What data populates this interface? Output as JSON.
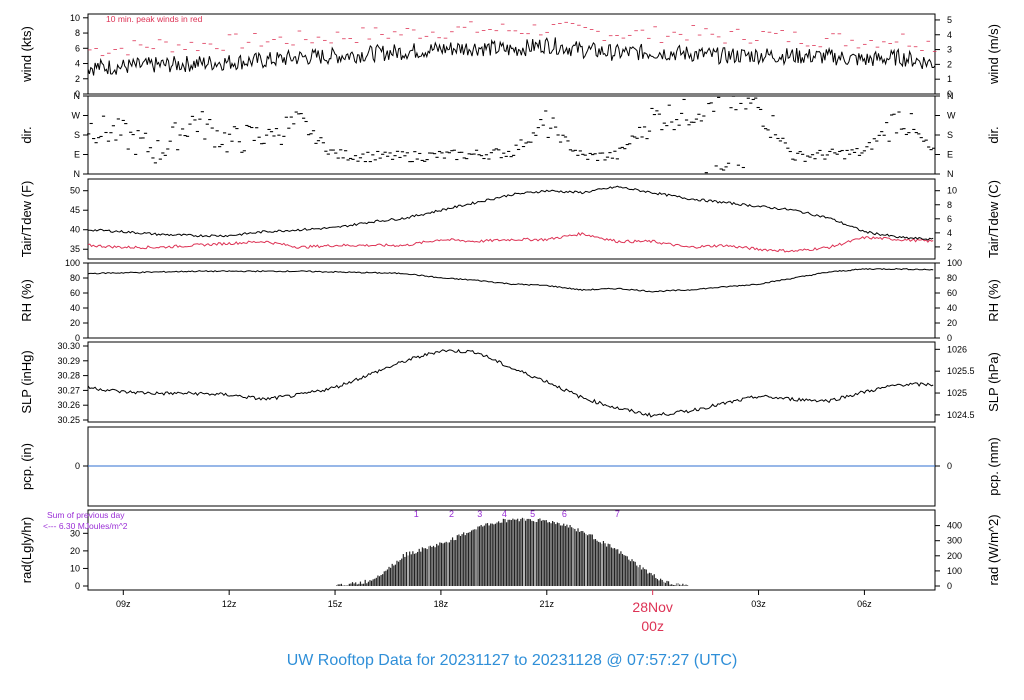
{
  "title": "UW Rooftop Data for 20231127  to  20231128 @ 07:57:27  (UTC)",
  "colors": {
    "title": "#2f8fd8",
    "red": "#dd3355",
    "purple": "#9a2ed6",
    "blue": "#2f6fd0",
    "black": "#000000"
  },
  "x_axis": {
    "ticks": [
      {
        "label": "09z",
        "hour": 1
      },
      {
        "label": "12z",
        "hour": 4
      },
      {
        "label": "15z",
        "hour": 7
      },
      {
        "label": "18z",
        "hour": 10
      },
      {
        "label": "21z",
        "hour": 13
      },
      {
        "label": "03z",
        "hour": 19
      },
      {
        "label": "06z",
        "hour": 22
      }
    ],
    "date_label": "28Nov",
    "midnight_label": "00z",
    "midnight_hour": 16,
    "range_hours_from_08z": [
      0,
      24
    ]
  },
  "chart_data": [
    {
      "type": "line",
      "name": "wind",
      "ylabel_left": "wind (kts)",
      "ylabel_right": "wind (m/s)",
      "ylim": [
        0,
        10.5
      ],
      "left_ticks": [
        "0",
        "2",
        "4",
        "6",
        "8",
        "10"
      ],
      "right_ticks": [
        "0",
        "1",
        "2",
        "3",
        "4",
        "5"
      ],
      "annotation": "10 min. peak winds in red",
      "x": [
        0,
        1,
        2,
        3,
        4,
        5,
        6,
        7,
        8,
        9,
        10,
        11,
        12,
        13,
        14,
        15,
        16,
        17,
        18,
        19,
        20,
        21,
        22,
        23,
        24
      ],
      "series": [
        {
          "name": "wind",
          "values": [
            3.5,
            3.6,
            3.8,
            4.0,
            4.2,
            4.4,
            4.8,
            5.0,
            5.3,
            5.6,
            5.9,
            6.1,
            5.8,
            6.5,
            5.8,
            5.4,
            5.5,
            5.3,
            5.0,
            5.1,
            5.0,
            4.9,
            4.5,
            4.8,
            4.0
          ]
        },
        {
          "name": "peak",
          "values": [
            5.8,
            6.0,
            6.5,
            6.4,
            6.8,
            7.0,
            7.2,
            7.5,
            7.8,
            8.0,
            8.3,
            8.5,
            8.4,
            8.6,
            8.2,
            8.0,
            7.8,
            8.0,
            7.5,
            7.8,
            7.4,
            7.2,
            7.0,
            7.3,
            6.5
          ]
        }
      ]
    },
    {
      "type": "scatter",
      "name": "direction",
      "ylabel": "dir.",
      "ticks": [
        "N",
        "E",
        "S",
        "W",
        "N"
      ],
      "x": [
        0,
        1,
        2,
        3,
        4,
        5,
        6,
        7,
        8,
        9,
        10,
        11,
        12,
        13,
        14,
        15,
        16,
        17,
        18,
        19,
        20,
        21,
        22,
        23,
        24
      ],
      "values_deg": [
        220,
        180,
        100,
        250,
        150,
        180,
        230,
        90,
        80,
        80,
        85,
        90,
        100,
        230,
        80,
        85,
        260,
        280,
        350,
        310,
        80,
        90,
        100,
        270,
        90
      ]
    },
    {
      "type": "line",
      "name": "temperature",
      "ylabel_left": "Tair/Tdew (F)",
      "ylabel_right": "Tair/Tdew (C)",
      "ylim": [
        32.5,
        53
      ],
      "left_ticks": [
        "35",
        "40",
        "45",
        "50"
      ],
      "right_ticks": [
        "2",
        "4",
        "6",
        "8",
        "10"
      ],
      "x": [
        0,
        1,
        2,
        3,
        4,
        5,
        6,
        7,
        8,
        9,
        10,
        11,
        12,
        13,
        14,
        15,
        16,
        17,
        18,
        19,
        20,
        21,
        22,
        23,
        24
      ],
      "series": [
        {
          "name": "Tair",
          "values": [
            40,
            39.5,
            38.8,
            38.5,
            38.5,
            39.5,
            40,
            40.5,
            42,
            43,
            45,
            47,
            49,
            50,
            49.5,
            51,
            49.5,
            48,
            47,
            46,
            45,
            43,
            39.5,
            38,
            37.5
          ]
        },
        {
          "name": "Tdew",
          "values": [
            36,
            35.5,
            35.5,
            36,
            36.5,
            37,
            35.5,
            36,
            36,
            36,
            37.5,
            37,
            37.5,
            37.5,
            39,
            37,
            37,
            35.5,
            36,
            35,
            34.5,
            35.5,
            38,
            37.5,
            37
          ]
        }
      ]
    },
    {
      "type": "line",
      "name": "rh",
      "ylabel_left": "RH (%)",
      "ylabel_right": "RH (%)",
      "ylim": [
        0,
        100
      ],
      "left_ticks": [
        "0",
        "20",
        "40",
        "60",
        "80",
        "100"
      ],
      "right_ticks": [
        "0",
        "20",
        "40",
        "60",
        "80",
        "100"
      ],
      "x": [
        0,
        1,
        2,
        3,
        4,
        5,
        6,
        7,
        8,
        9,
        10,
        11,
        12,
        13,
        14,
        15,
        16,
        17,
        18,
        19,
        20,
        21,
        22,
        23,
        24
      ],
      "series": [
        {
          "name": "RH",
          "values": [
            86,
            87,
            88,
            89,
            89,
            89,
            89,
            88,
            87,
            86,
            80,
            77,
            72,
            70,
            64,
            66,
            62,
            64,
            68,
            72,
            80,
            88,
            92,
            92,
            91
          ]
        }
      ]
    },
    {
      "type": "line",
      "name": "pressure",
      "ylabel_left": "SLP (inHg)",
      "ylabel_right": "SLP (hPa)",
      "ylim": [
        30.25,
        30.3
      ],
      "left_ticks": [
        "30.25",
        "30.26",
        "30.27",
        "30.28",
        "30.29",
        "30.30"
      ],
      "right_ticks": [
        "1024.5",
        "1025",
        "1025.5",
        "1026"
      ],
      "x": [
        0,
        1,
        2,
        3,
        4,
        5,
        6,
        7,
        8,
        9,
        10,
        11,
        12,
        13,
        14,
        15,
        16,
        17,
        18,
        19,
        20,
        21,
        22,
        23,
        24
      ],
      "series": [
        {
          "name": "SLP",
          "values": [
            30.272,
            30.269,
            30.268,
            30.268,
            30.267,
            30.264,
            30.267,
            30.272,
            30.281,
            30.29,
            30.297,
            30.296,
            30.285,
            30.276,
            30.265,
            30.258,
            30.253,
            30.256,
            30.261,
            30.266,
            30.264,
            30.263,
            30.269,
            30.274,
            30.274
          ]
        }
      ]
    },
    {
      "type": "line",
      "name": "precipitation",
      "ylabel_left": "pcp. (in)",
      "ylabel_right": "pcp. (mm)",
      "left_ticks": [
        "0"
      ],
      "right_ticks": [
        "0"
      ],
      "x": [
        0,
        24
      ],
      "series": [
        {
          "name": "pcp",
          "values": [
            0,
            0
          ]
        }
      ]
    },
    {
      "type": "area",
      "name": "radiation",
      "ylabel_left": "rad(Lgly/hr)",
      "ylabel_right": "rad (W/m^2)",
      "ylim": [
        0,
        41
      ],
      "left_ticks": [
        "0",
        "10",
        "20",
        "30"
      ],
      "right_ticks": [
        "0",
        "100",
        "200",
        "300",
        "400"
      ],
      "top_annotation": "Sum of previous day",
      "top_annotation_value": "<--- 6.30 MJoules/m^2",
      "sun_markers": [
        "1",
        "2",
        "3",
        "4",
        "5",
        "6",
        "7"
      ],
      "x": [
        7,
        7.5,
        8,
        8.5,
        9,
        9.5,
        10,
        10.5,
        11,
        11.5,
        12,
        12.5,
        13,
        13.5,
        14,
        14.5,
        15,
        15.5,
        16,
        16.5,
        17
      ],
      "series": [
        {
          "name": "radiation",
          "values": [
            0,
            1,
            3,
            10,
            18,
            21,
            24,
            28,
            33,
            36,
            38,
            38,
            37,
            35,
            31,
            26,
            20,
            13,
            6,
            1,
            0
          ]
        }
      ]
    }
  ]
}
